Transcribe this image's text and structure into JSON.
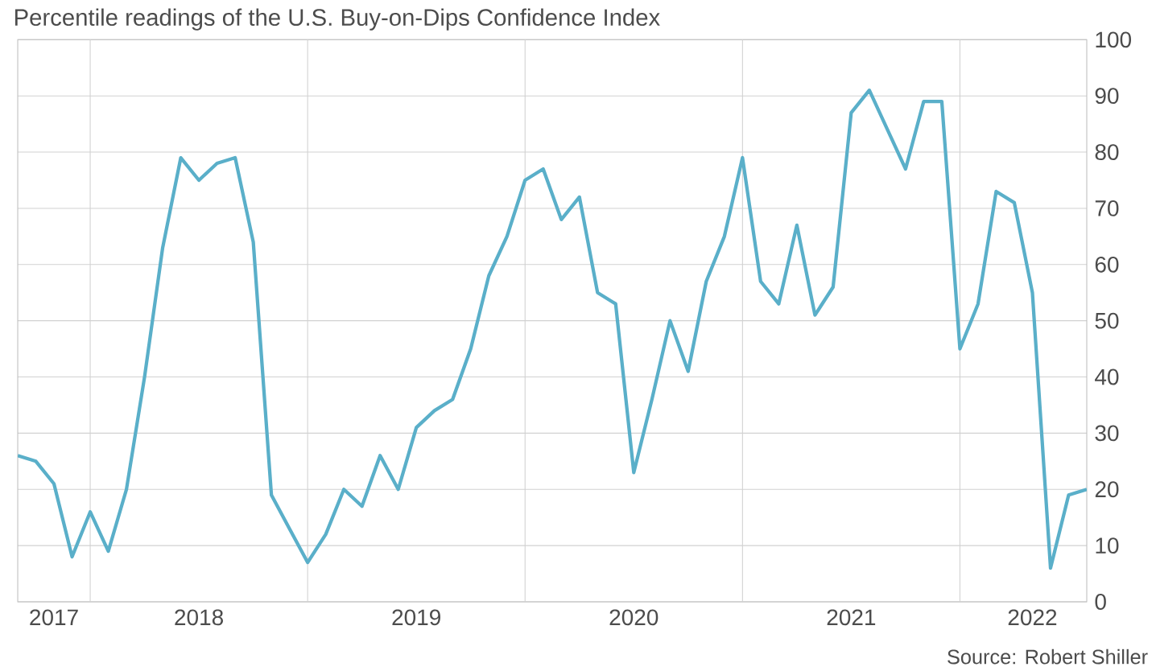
{
  "chart_data": {
    "type": "line",
    "title": "Percentile readings of the U.S. Buy-on-Dips Confidence Index",
    "annotations": [
      "Source: Robert Shiller"
    ],
    "x": [
      "2017-09",
      "2017-10",
      "2017-11",
      "2017-12",
      "2018-01",
      "2018-02",
      "2018-03",
      "2018-04",
      "2018-05",
      "2018-06",
      "2018-07",
      "2018-08",
      "2018-09",
      "2018-10",
      "2018-11",
      "2018-12",
      "2019-01",
      "2019-02",
      "2019-03",
      "2019-04",
      "2019-05",
      "2019-06",
      "2019-07",
      "2019-08",
      "2019-09",
      "2019-10",
      "2019-11",
      "2019-12",
      "2020-01",
      "2020-02",
      "2020-03",
      "2020-04",
      "2020-05",
      "2020-06",
      "2020-07",
      "2020-08",
      "2020-09",
      "2020-10",
      "2020-11",
      "2020-12",
      "2021-01",
      "2021-02",
      "2021-03",
      "2021-04",
      "2021-05",
      "2021-06",
      "2021-07",
      "2021-08",
      "2021-09",
      "2021-10",
      "2021-11",
      "2021-12",
      "2022-01",
      "2022-02",
      "2022-03",
      "2022-04",
      "2022-05",
      "2022-06",
      "2022-07",
      "2022-08"
    ],
    "values": [
      26,
      25,
      21,
      8,
      16,
      9,
      20,
      40,
      63,
      79,
      75,
      78,
      79,
      64,
      19,
      13,
      7,
      12,
      20,
      17,
      26,
      20,
      31,
      34,
      36,
      45,
      58,
      65,
      75,
      77,
      68,
      72,
      55,
      53,
      23,
      36,
      50,
      41,
      57,
      65,
      79,
      57,
      53,
      67,
      51,
      56,
      87,
      91,
      84,
      77,
      89,
      89,
      45,
      53,
      73,
      71,
      55,
      6,
      19,
      20
    ],
    "color": "#5aafc9",
    "xlim": [
      "2017-09",
      "2022-08"
    ],
    "ylim": [
      0,
      100
    ],
    "xticks": [
      {
        "value": "2017-11",
        "label": "2017"
      },
      {
        "value": "2018-01",
        "label": null
      },
      {
        "value": "2018-07",
        "label": "2018"
      },
      {
        "value": "2019-01",
        "label": null
      },
      {
        "value": "2019-07",
        "label": "2019"
      },
      {
        "value": "2020-01",
        "label": null
      },
      {
        "value": "2020-07",
        "label": "2020"
      },
      {
        "value": "2021-01",
        "label": null
      },
      {
        "value": "2021-07",
        "label": "2021"
      },
      {
        "value": "2022-01",
        "label": null
      },
      {
        "value": "2022-05",
        "label": "2022"
      }
    ],
    "yticks": [
      0,
      10,
      20,
      30,
      40,
      50,
      60,
      70,
      80,
      90,
      100
    ],
    "grid": true
  }
}
